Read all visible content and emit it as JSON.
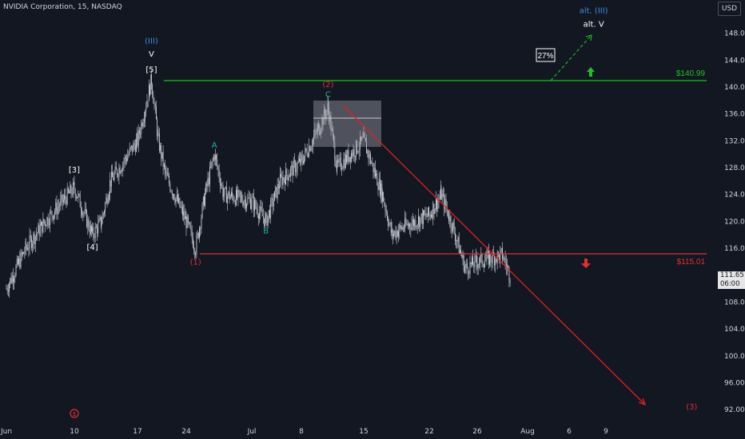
{
  "header": {
    "symbol_line": "NVIDIA Corporation, 15, NASDAQ",
    "currency_button": "USD"
  },
  "price_tag": {
    "price": "111.65",
    "countdown": "06:00"
  },
  "colors": {
    "background": "#131722",
    "candles": "#d1d4dc",
    "resistance": "#20c020",
    "support": "#e03030",
    "bearish_path": "#e02020",
    "bullish_path": "#20c020",
    "wave_blue": "#3d8bd9",
    "wave_teal": "#1fb5a7",
    "wave_red": "#e03030"
  },
  "chart_data": {
    "type": "candlestick",
    "y_axis_ticks": [
      92,
      96,
      100,
      104,
      108,
      112,
      116,
      120,
      124,
      128,
      132,
      136,
      140,
      144,
      148
    ],
    "x_axis_ticks": [
      "Jun",
      "10",
      "17",
      "24",
      "Jul",
      "8",
      "15",
      "22",
      "26",
      "Aug",
      "6",
      "9"
    ],
    "x_axis_ticks_hidden": [
      "Jun",
      "10",
      "17",
      "24",
      "Jul",
      "8",
      "15",
      "22",
      "26",
      "Aug",
      "6",
      "9"
    ],
    "ylim": [
      90,
      152
    ],
    "price_path": [
      {
        "date": "Jun 3",
        "price": 110
      },
      {
        "date": "Jun 5",
        "price": 116
      },
      {
        "date": "Jun 7",
        "price": 120
      },
      {
        "date": "Jun 10",
        "price": 125
      },
      {
        "date": "Jun 12",
        "price": 118
      },
      {
        "date": "Jun 13",
        "price": 120
      },
      {
        "date": "Jun 14",
        "price": 126
      },
      {
        "date": "Jun 17",
        "price": 132
      },
      {
        "date": "Jun 19",
        "price": 141
      },
      {
        "date": "Jun 20",
        "price": 132
      },
      {
        "date": "Jun 21",
        "price": 127
      },
      {
        "date": "Jun 24",
        "price": 120
      },
      {
        "date": "Jun 25",
        "price": 116
      },
      {
        "date": "Jun 26",
        "price": 124
      },
      {
        "date": "Jun 27",
        "price": 130
      },
      {
        "date": "Jun 28",
        "price": 124
      },
      {
        "date": "Jul 1",
        "price": 123
      },
      {
        "date": "Jul 3",
        "price": 120
      },
      {
        "date": "Jul 5",
        "price": 126
      },
      {
        "date": "Jul 8",
        "price": 129
      },
      {
        "date": "Jul 10",
        "price": 134
      },
      {
        "date": "Jul 11",
        "price": 137
      },
      {
        "date": "Jul 12",
        "price": 128
      },
      {
        "date": "Jul 15",
        "price": 132
      },
      {
        "date": "Jul 17",
        "price": 124
      },
      {
        "date": "Jul 18",
        "price": 118
      },
      {
        "date": "Jul 19",
        "price": 119
      },
      {
        "date": "Jul 22",
        "price": 121
      },
      {
        "date": "Jul 23",
        "price": 124
      },
      {
        "date": "Jul 24",
        "price": 119
      },
      {
        "date": "Jul 25",
        "price": 113
      },
      {
        "date": "Jul 26",
        "price": 114
      },
      {
        "date": "Jul 29",
        "price": 115
      },
      {
        "date": "Jul 30",
        "price": 111.65
      }
    ],
    "levels": [
      {
        "name": "resistance",
        "value": 140.99,
        "label": "$140.99"
      },
      {
        "name": "support",
        "value": 115.01,
        "label": "$115.01"
      }
    ],
    "percentage_box": "27%",
    "wave_labels": [
      {
        "text": "(III)",
        "date": "Jun 19",
        "price": 146.5,
        "color": "wave_blue"
      },
      {
        "text": "V",
        "date": "Jun 19",
        "price": 144.5,
        "color": "text"
      },
      {
        "text": "[5]",
        "date": "Jun 19",
        "price": 142.2,
        "color": "text"
      },
      {
        "text": "[3]",
        "date": "Jun 10",
        "price": 127.3,
        "color": "text"
      },
      {
        "text": "[4]",
        "date": "Jun 12",
        "price": 115.8,
        "color": "text"
      },
      {
        "text": "A",
        "date": "Jun 27",
        "price": 131,
        "color": "wave_teal"
      },
      {
        "text": "B",
        "date": "Jul 3",
        "price": 118.2,
        "color": "wave_teal"
      },
      {
        "text": "(1)",
        "date": "Jun 25",
        "price": 113.6,
        "color": "wave_red"
      },
      {
        "text": "(2)",
        "date": "Jul 11",
        "price": 140,
        "color": "wave_red"
      },
      {
        "text": "C",
        "date": "Jul 11",
        "price": 138.5,
        "color": "wave_teal"
      },
      {
        "text": "alt. (III)",
        "date": "Aug 8",
        "price": 151,
        "color": "wave_blue"
      },
      {
        "text": "alt. V",
        "date": "Aug 8",
        "price": 149,
        "color": "text"
      },
      {
        "text": "(3)",
        "date": "Aug 16",
        "price": 92,
        "color": "wave_red"
      }
    ]
  }
}
